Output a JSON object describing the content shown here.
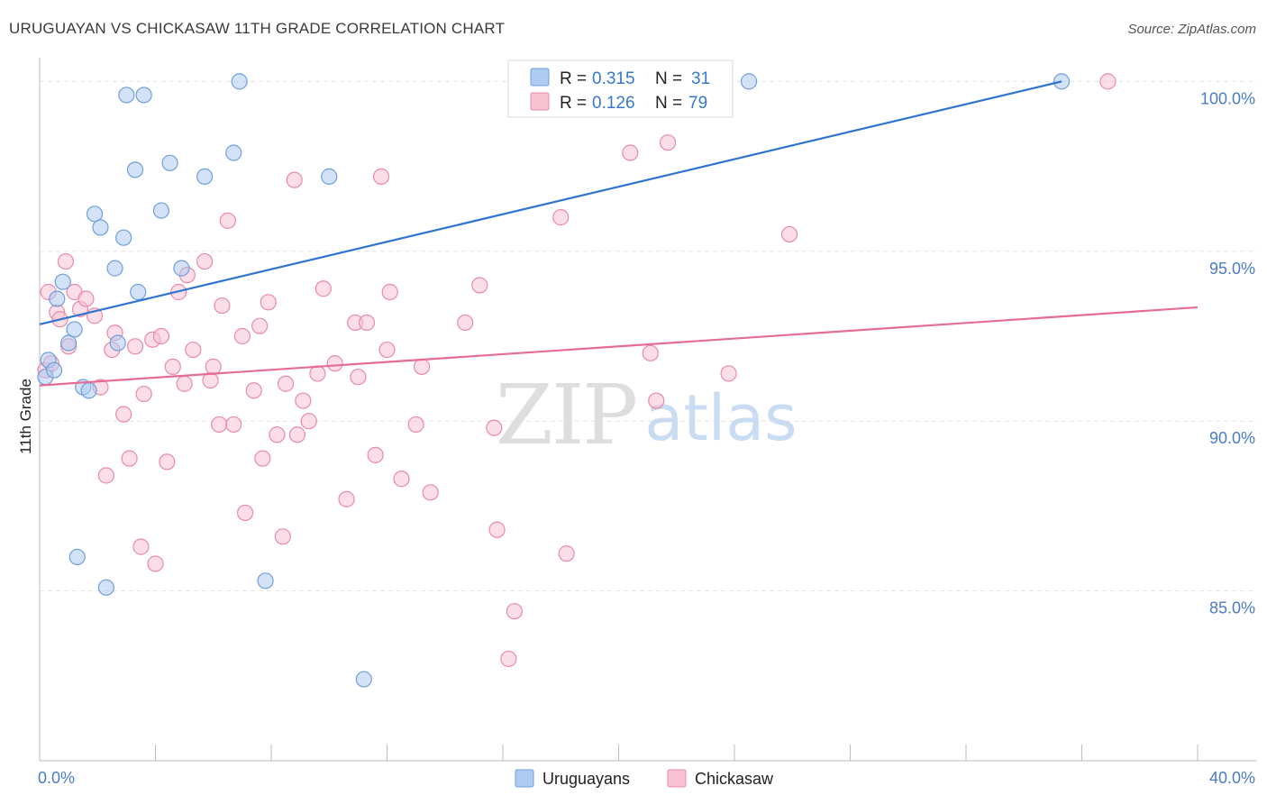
{
  "title": "URUGUAYAN VS CHICKASAW 11TH GRADE CORRELATION CHART",
  "source": "Source: ZipAtlas.com",
  "watermark": {
    "zip": "ZIP",
    "atlas": "atlas"
  },
  "colors": {
    "blue_fill": "#aecbf0",
    "blue_stroke": "#6f9fdb",
    "blue_line": "#2f74d0",
    "pink_fill": "#f7c3d3",
    "pink_stroke": "#e98aa8",
    "pink_line": "#e66b96",
    "tick_text": "#4a7cc7",
    "grid": "#e3e3e3"
  },
  "legend": {
    "rows": [
      {
        "r_label": "R = ",
        "r_value": "0.315",
        "n_label": "N = ",
        "n_value": "31"
      },
      {
        "r_label": "R = ",
        "r_value": "0.126",
        "n_label": "N = ",
        "n_value": "79"
      }
    ]
  },
  "chart_data": {
    "type": "scatter",
    "title": "URUGUAYAN VS CHICKASAW 11TH GRADE CORRELATION CHART",
    "xlabel": "",
    "ylabel": "11th Grade",
    "xlim": [
      0,
      40
    ],
    "ylim": [
      80.0,
      100.7
    ],
    "x_tick_labels": [
      {
        "value": 0,
        "label": "0.0%"
      },
      {
        "value": 40,
        "label": "40.0%"
      }
    ],
    "y_ticks": [
      {
        "value": 100,
        "label": "100.0%"
      },
      {
        "value": 95,
        "label": "95.0%"
      },
      {
        "value": 90,
        "label": "90.0%"
      },
      {
        "value": 85,
        "label": "85.0%"
      }
    ],
    "series": [
      {
        "name": "Uruguayans",
        "r": 0.315,
        "n": 31,
        "trend": {
          "x0": 0,
          "y0": 92.85,
          "x1": 35.3,
          "y1": 100.0
        },
        "points": [
          [
            0.2,
            91.3
          ],
          [
            0.3,
            91.8
          ],
          [
            0.5,
            91.5
          ],
          [
            0.6,
            93.6
          ],
          [
            0.8,
            94.1
          ],
          [
            1.0,
            92.3
          ],
          [
            1.2,
            92.7
          ],
          [
            1.5,
            91.0
          ],
          [
            1.7,
            90.9
          ],
          [
            1.9,
            96.1
          ],
          [
            2.1,
            95.7
          ],
          [
            2.6,
            94.5
          ],
          [
            2.7,
            92.3
          ],
          [
            2.9,
            95.4
          ],
          [
            3.0,
            99.6
          ],
          [
            3.3,
            97.4
          ],
          [
            3.4,
            93.8
          ],
          [
            3.6,
            99.6
          ],
          [
            4.2,
            96.2
          ],
          [
            4.5,
            97.6
          ],
          [
            4.9,
            94.5
          ],
          [
            5.7,
            97.2
          ],
          [
            6.7,
            97.9
          ],
          [
            6.9,
            100.0
          ],
          [
            10.0,
            97.2
          ],
          [
            24.5,
            100.0
          ],
          [
            35.3,
            100.0
          ],
          [
            1.3,
            86.0
          ],
          [
            2.3,
            85.1
          ],
          [
            7.8,
            85.3
          ],
          [
            11.2,
            82.4
          ]
        ]
      },
      {
        "name": "Chickasaw",
        "r": 0.126,
        "n": 79,
        "trend": {
          "x0": 0,
          "y0": 91.05,
          "x1": 40,
          "y1": 93.35
        },
        "points": [
          [
            0.2,
            91.5
          ],
          [
            0.3,
            93.8
          ],
          [
            0.4,
            91.7
          ],
          [
            0.6,
            93.2
          ],
          [
            0.7,
            93.0
          ],
          [
            0.9,
            94.7
          ],
          [
            1.0,
            92.2
          ],
          [
            1.2,
            93.8
          ],
          [
            1.4,
            93.3
          ],
          [
            1.6,
            93.6
          ],
          [
            1.9,
            93.1
          ],
          [
            2.1,
            91.0
          ],
          [
            2.3,
            88.4
          ],
          [
            2.5,
            92.1
          ],
          [
            2.6,
            92.6
          ],
          [
            2.9,
            90.2
          ],
          [
            3.1,
            88.9
          ],
          [
            3.3,
            92.2
          ],
          [
            3.5,
            86.3
          ],
          [
            3.6,
            90.8
          ],
          [
            3.9,
            92.4
          ],
          [
            4.0,
            85.8
          ],
          [
            4.2,
            92.5
          ],
          [
            4.4,
            88.8
          ],
          [
            4.6,
            91.6
          ],
          [
            4.8,
            93.8
          ],
          [
            5.0,
            91.1
          ],
          [
            5.1,
            94.3
          ],
          [
            5.3,
            92.1
          ],
          [
            5.7,
            94.7
          ],
          [
            5.9,
            91.2
          ],
          [
            6.0,
            91.6
          ],
          [
            6.2,
            89.9
          ],
          [
            6.3,
            93.4
          ],
          [
            6.5,
            95.9
          ],
          [
            6.7,
            89.9
          ],
          [
            7.0,
            92.5
          ],
          [
            7.1,
            87.3
          ],
          [
            7.4,
            90.9
          ],
          [
            7.6,
            92.8
          ],
          [
            7.7,
            88.9
          ],
          [
            7.9,
            93.5
          ],
          [
            8.2,
            89.6
          ],
          [
            8.4,
            86.6
          ],
          [
            8.5,
            91.1
          ],
          [
            8.8,
            97.1
          ],
          [
            8.9,
            89.6
          ],
          [
            9.1,
            90.6
          ],
          [
            9.3,
            90.0
          ],
          [
            9.6,
            91.4
          ],
          [
            9.8,
            93.9
          ],
          [
            10.2,
            91.7
          ],
          [
            10.6,
            87.7
          ],
          [
            10.9,
            92.9
          ],
          [
            11.0,
            91.3
          ],
          [
            11.3,
            92.9
          ],
          [
            11.6,
            89.0
          ],
          [
            11.8,
            97.2
          ],
          [
            12.0,
            92.1
          ],
          [
            12.1,
            93.8
          ],
          [
            12.5,
            88.3
          ],
          [
            13.0,
            89.9
          ],
          [
            13.2,
            91.6
          ],
          [
            13.5,
            87.9
          ],
          [
            14.7,
            92.9
          ],
          [
            15.2,
            94.0
          ],
          [
            15.7,
            89.8
          ],
          [
            15.8,
            86.8
          ],
          [
            16.4,
            84.4
          ],
          [
            16.2,
            83.0
          ],
          [
            18.0,
            96.0
          ],
          [
            18.2,
            86.1
          ],
          [
            20.4,
            97.9
          ],
          [
            21.1,
            92.0
          ],
          [
            21.3,
            90.6
          ],
          [
            21.7,
            98.2
          ],
          [
            23.8,
            91.4
          ],
          [
            25.9,
            95.5
          ],
          [
            36.9,
            100.0
          ]
        ]
      }
    ]
  }
}
